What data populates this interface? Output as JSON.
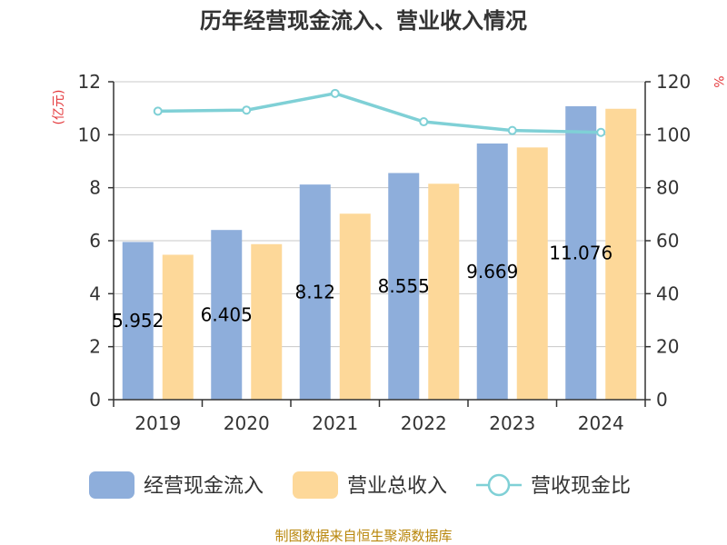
{
  "title": "历年经营现金流入、营业收入情况",
  "source_note": "制图数据来自恒生聚源数据库",
  "chart_data": {
    "type": "bar",
    "title": "历年经营现金流入、营业收入情况",
    "categories": [
      "2019",
      "2020",
      "2021",
      "2022",
      "2023",
      "2024"
    ],
    "left_axis": {
      "unit": "(亿元)",
      "ticks": [
        "0",
        "2",
        "4",
        "6",
        "8",
        "10",
        "12"
      ],
      "ylim": [
        0,
        12
      ]
    },
    "right_axis": {
      "unit": "%",
      "ticks": [
        "0",
        "20",
        "40",
        "60",
        "80",
        "100",
        "120"
      ],
      "ylim": [
        0,
        120
      ]
    },
    "grid": true,
    "legend_position": "bottom",
    "series": [
      {
        "name": "经营现金流入",
        "type": "bar",
        "axis": "left",
        "color": "#8eaedb",
        "values": [
          5.952,
          6.405,
          8.12,
          8.555,
          9.669,
          11.076
        ],
        "labels": [
          "5.952",
          "6.405",
          "8.12",
          "8.555",
          "9.669",
          "11.076"
        ]
      },
      {
        "name": "营业总收入",
        "type": "bar",
        "axis": "left",
        "color": "#fdd899",
        "values": [
          5.47,
          5.87,
          7.02,
          8.15,
          9.52,
          10.98
        ]
      },
      {
        "name": "营收现金比",
        "type": "line",
        "axis": "right",
        "color": "#7fd0d6",
        "values": [
          108.9,
          109.3,
          115.6,
          104.9,
          101.6,
          100.9
        ]
      }
    ]
  }
}
